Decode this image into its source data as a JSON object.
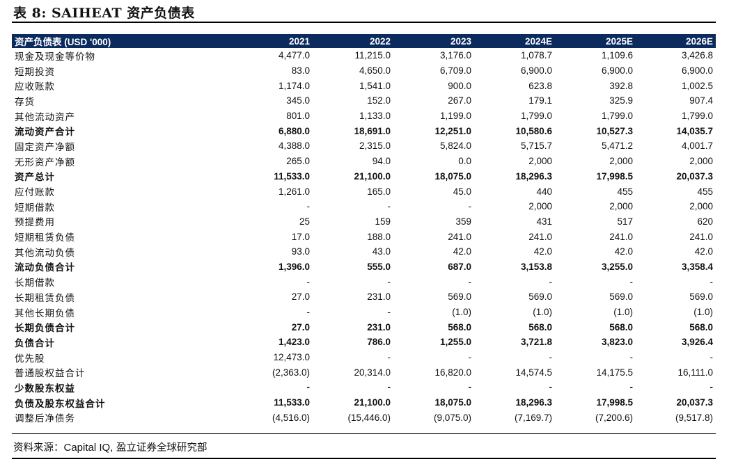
{
  "title": "表 8: SAIHEAT 资产负债表",
  "header": [
    "资产负债表 (USD '000)",
    "2021",
    "2022",
    "2023",
    "2024E",
    "2025E",
    "2026E"
  ],
  "rows": [
    {
      "label": "现金及现金等价物",
      "values": [
        "4,477.0",
        "11,215.0",
        "3,176.0",
        "1,078.7",
        "1,109.6",
        "3,426.8"
      ],
      "bold": false
    },
    {
      "label": "短期投资",
      "values": [
        "83.0",
        "4,650.0",
        "6,709.0",
        "6,900.0",
        "6,900.0",
        "6,900.0"
      ],
      "bold": false
    },
    {
      "label": "应收账款",
      "values": [
        "1,174.0",
        "1,541.0",
        "900.0",
        "623.8",
        "392.8",
        "1,002.5"
      ],
      "bold": false
    },
    {
      "label": "存货",
      "values": [
        "345.0",
        "152.0",
        "267.0",
        "179.1",
        "325.9",
        "907.4"
      ],
      "bold": false
    },
    {
      "label": "其他流动资产",
      "values": [
        "801.0",
        "1,133.0",
        "1,199.0",
        "1,799.0",
        "1,799.0",
        "1,799.0"
      ],
      "bold": false
    },
    {
      "label": "流动资产合计",
      "values": [
        "6,880.0",
        "18,691.0",
        "12,251.0",
        "10,580.6",
        "10,527.3",
        "14,035.7"
      ],
      "bold": true
    },
    {
      "label": "固定资产净额",
      "values": [
        "4,388.0",
        "2,315.0",
        "5,824.0",
        "5,715.7",
        "5,471.2",
        "4,001.7"
      ],
      "bold": false
    },
    {
      "label": "无形资产净额",
      "values": [
        "265.0",
        "94.0",
        "0.0",
        "2,000",
        "2,000",
        "2,000"
      ],
      "bold": false
    },
    {
      "label": "资产总计",
      "values": [
        "11,533.0",
        "21,100.0",
        "18,075.0",
        "18,296.3",
        "17,998.5",
        "20,037.3"
      ],
      "bold": true
    },
    {
      "label": "应付账款",
      "values": [
        "1,261.0",
        "165.0",
        "45.0",
        "440",
        "455",
        "455"
      ],
      "bold": false
    },
    {
      "label": "短期借款",
      "values": [
        "-",
        "-",
        "-",
        "2,000",
        "2,000",
        "2,000"
      ],
      "bold": false
    },
    {
      "label": "预提费用",
      "values": [
        "25",
        "159",
        "359",
        "431",
        "517",
        "620"
      ],
      "bold": false
    },
    {
      "label": "短期租赁负债",
      "values": [
        "17.0",
        "188.0",
        "241.0",
        "241.0",
        "241.0",
        "241.0"
      ],
      "bold": false
    },
    {
      "label": "其他流动负债",
      "values": [
        "93.0",
        "43.0",
        "42.0",
        "42.0",
        "42.0",
        "42.0"
      ],
      "bold": false
    },
    {
      "label": "流动负债合计",
      "values": [
        "1,396.0",
        "555.0",
        "687.0",
        "3,153.8",
        "3,255.0",
        "3,358.4"
      ],
      "bold": true
    },
    {
      "label": "长期借款",
      "values": [
        "-",
        "-",
        "-",
        "-",
        "-",
        "-"
      ],
      "bold": false
    },
    {
      "label": "长期租赁负债",
      "values": [
        "27.0",
        "231.0",
        "569.0",
        "569.0",
        "569.0",
        "569.0"
      ],
      "bold": false
    },
    {
      "label": "其他长期负债",
      "values": [
        "-",
        "-",
        "(1.0)",
        "(1.0)",
        "(1.0)",
        "(1.0)"
      ],
      "bold": false
    },
    {
      "label": "长期负债合计",
      "values": [
        "27.0",
        "231.0",
        "568.0",
        "568.0",
        "568.0",
        "568.0"
      ],
      "bold": true
    },
    {
      "label": "负债合计",
      "values": [
        "1,423.0",
        "786.0",
        "1,255.0",
        "3,721.8",
        "3,823.0",
        "3,926.4"
      ],
      "bold": true
    },
    {
      "label": "优先股",
      "values": [
        "12,473.0",
        "-",
        "-",
        "-",
        "-",
        "-"
      ],
      "bold": false
    },
    {
      "label": "普通股权益合计",
      "values": [
        "(2,363.0)",
        "20,314.0",
        "16,820.0",
        "14,574.5",
        "14,175.5",
        "16,111.0"
      ],
      "bold": false
    },
    {
      "label": "少数股东权益",
      "values": [
        "-",
        "-",
        "-",
        "-",
        "-",
        "-"
      ],
      "bold": true
    },
    {
      "label": "负债及股东权益合计",
      "values": [
        "11,533.0",
        "21,100.0",
        "18,075.0",
        "18,296.3",
        "17,998.5",
        "20,037.3"
      ],
      "bold": true
    },
    {
      "label": "调整后净债务",
      "values": [
        "(4,516.0)",
        "(15,446.0)",
        "(9,075.0)",
        "(7,169.7)",
        "(7,200.6)",
        "(9,517.8)"
      ],
      "bold": false
    }
  ],
  "source": {
    "prefix": "资料来源：",
    "name": "Capital IQ,",
    "suffix": " 盈立证券全球研究部"
  }
}
